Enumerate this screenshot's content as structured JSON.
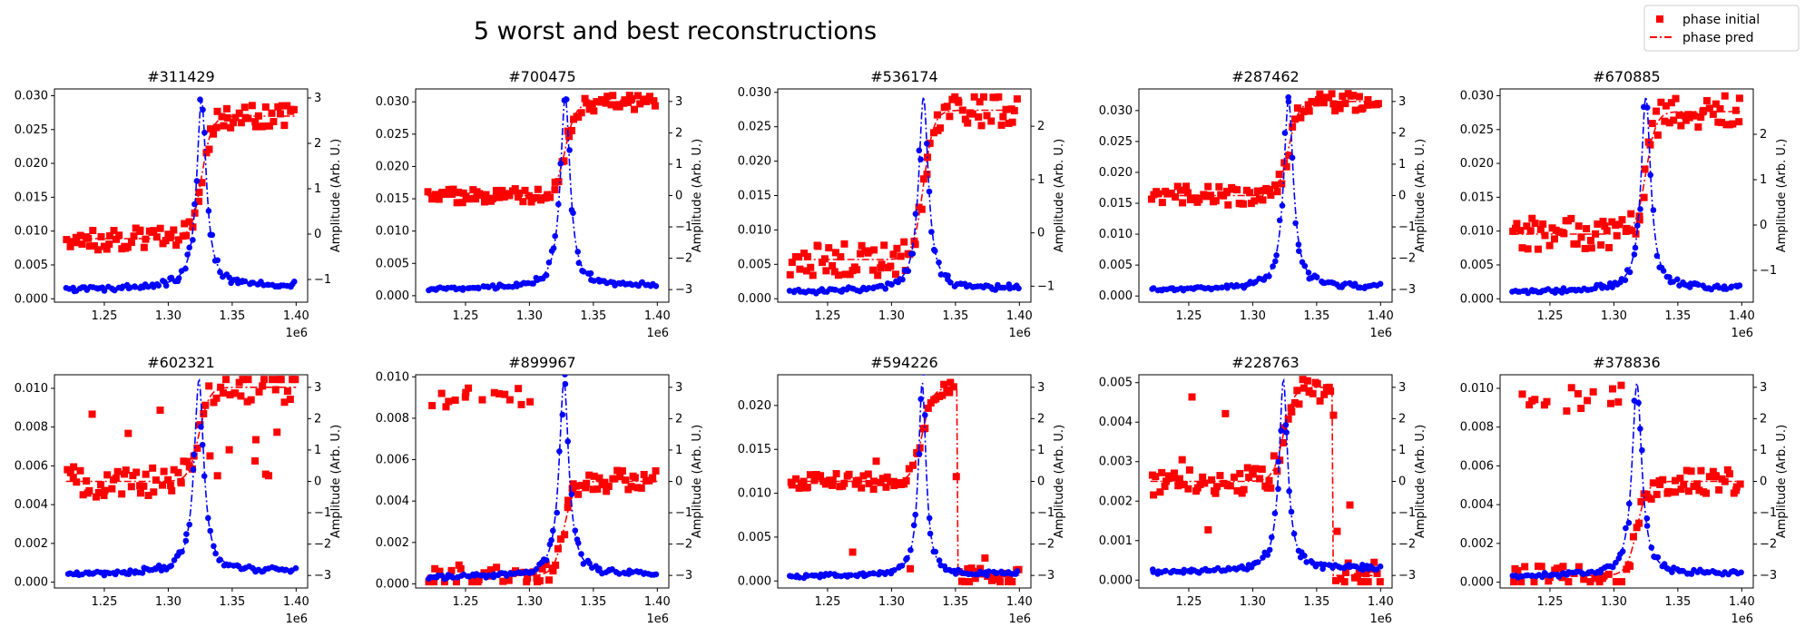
{
  "figure": {
    "title": "5 worst and best reconstructions",
    "legend": {
      "placement": "top-right",
      "entries": [
        {
          "label": "phase initial",
          "marker": "square",
          "color": "#ff0000"
        },
        {
          "label": "phase pred",
          "line": "dash-dot",
          "color": "#ff0000"
        }
      ]
    },
    "colors": {
      "amplitude": "#0000ff",
      "phase": "#ff0000"
    }
  },
  "chart_data": [
    {
      "type": "line",
      "title": "#311429",
      "x_range": [
        1220000,
        1400000
      ],
      "xticks": [
        1.25,
        1.3,
        1.35,
        1.4
      ],
      "x_offset_label": "1e6",
      "resonance": 1326000,
      "width": 0.009,
      "amp_min": 0.0013,
      "amp_peak": 0.029,
      "ylim": [
        -0.0005,
        0.031
      ],
      "yticks": [
        "0.000",
        "0.005",
        "0.010",
        "0.015",
        "0.020",
        "0.025",
        "0.030"
      ],
      "y2lim": [
        -1.5,
        3.2
      ],
      "y2ticks": [
        "−1",
        "0",
        "1",
        "2",
        "3"
      ],
      "y2label": "Amplitude (Arb. U.)",
      "phase_lo": -0.1,
      "phase_hi": 2.6,
      "phase_noise": 0.25,
      "mode": "good"
    },
    {
      "type": "line",
      "title": "#700475",
      "x_range": [
        1220000,
        1400000
      ],
      "xticks": [
        1.25,
        1.3,
        1.35,
        1.4
      ],
      "x_offset_label": "1e6",
      "resonance": 1328000,
      "width": 0.009,
      "amp_min": 0.001,
      "amp_peak": 0.0305,
      "ylim": [
        -0.001,
        0.032
      ],
      "yticks": [
        "0.000",
        "0.005",
        "0.010",
        "0.015",
        "0.020",
        "0.025",
        "0.030"
      ],
      "y2lim": [
        -3.4,
        3.4
      ],
      "y2ticks": [
        "−3",
        "−2",
        "−1",
        "0",
        "1",
        "2",
        "3"
      ],
      "y2label": "Amplitude (Arb. U.)",
      "phase_lo": 0.0,
      "phase_hi": 2.95,
      "phase_noise": 0.25,
      "mode": "good"
    },
    {
      "type": "line",
      "title": "#536174",
      "x_range": [
        1220000,
        1400000
      ],
      "xticks": [
        1.25,
        1.3,
        1.35,
        1.4
      ],
      "x_offset_label": "1e6",
      "resonance": 1325000,
      "width": 0.009,
      "amp_min": 0.001,
      "amp_peak": 0.029,
      "ylim": [
        -0.0005,
        0.0305
      ],
      "yticks": [
        "0.000",
        "0.005",
        "0.010",
        "0.015",
        "0.020",
        "0.025",
        "0.030"
      ],
      "y2lim": [
        -1.3,
        2.7
      ],
      "y2ticks": [
        "−1",
        "0",
        "1",
        "2"
      ],
      "y2label": "Amplitude (Arb. U.)",
      "phase_lo": -0.5,
      "phase_hi": 2.3,
      "phase_noise": 0.3,
      "mode": "good"
    },
    {
      "type": "line",
      "title": "#287462",
      "x_range": [
        1220000,
        1400000
      ],
      "xticks": [
        1.25,
        1.3,
        1.35,
        1.4
      ],
      "x_offset_label": "1e6",
      "resonance": 1328000,
      "width": 0.009,
      "amp_min": 0.001,
      "amp_peak": 0.0315,
      "ylim": [
        -0.001,
        0.0335
      ],
      "yticks": [
        "0.000",
        "0.005",
        "0.010",
        "0.015",
        "0.020",
        "0.025",
        "0.030"
      ],
      "y2lim": [
        -3.4,
        3.4
      ],
      "y2ticks": [
        "−3",
        "−2",
        "−1",
        "0",
        "1",
        "2",
        "3"
      ],
      "y2label": "Amplitude (Arb. U.)",
      "phase_lo": 0.0,
      "phase_hi": 3.0,
      "phase_noise": 0.3,
      "mode": "good"
    },
    {
      "type": "line",
      "title": "#670885",
      "x_range": [
        1220000,
        1400000
      ],
      "xticks": [
        1.25,
        1.3,
        1.35,
        1.4
      ],
      "x_offset_label": "1e6",
      "resonance": 1325000,
      "width": 0.009,
      "amp_min": 0.001,
      "amp_peak": 0.0295,
      "ylim": [
        -0.0005,
        0.031
      ],
      "yticks": [
        "0.000",
        "0.005",
        "0.010",
        "0.015",
        "0.020",
        "0.025",
        "0.030"
      ],
      "y2lim": [
        -1.7,
        3.0
      ],
      "y2ticks": [
        "−1",
        "0",
        "1",
        "2"
      ],
      "y2label": "Amplitude (Arb. U.)",
      "phase_lo": -0.2,
      "phase_hi": 2.5,
      "phase_noise": 0.35,
      "mode": "good"
    },
    {
      "type": "line",
      "title": "#602321",
      "x_range": [
        1220000,
        1400000
      ],
      "xticks": [
        1.25,
        1.3,
        1.35,
        1.4
      ],
      "x_offset_label": "1e6",
      "resonance": 1324000,
      "width": 0.009,
      "amp_min": 0.0004,
      "amp_peak": 0.0103,
      "ylim": [
        -0.0003,
        0.0107
      ],
      "yticks": [
        "0.000",
        "0.002",
        "0.004",
        "0.006",
        "0.008",
        "0.010"
      ],
      "y2lim": [
        -3.4,
        3.4
      ],
      "y2ticks": [
        "−3",
        "−2",
        "−1",
        "0",
        "1",
        "2",
        "3"
      ],
      "y2label": "Amplitude (Arb. U.)",
      "phase_lo": 0.0,
      "phase_hi": 3.0,
      "phase_noise": 0.5,
      "mode": "scatter"
    },
    {
      "type": "line",
      "title": "#899967",
      "x_range": [
        1220000,
        1400000
      ],
      "xticks": [
        1.25,
        1.3,
        1.35,
        1.4
      ],
      "x_offset_label": "1e6",
      "resonance": 1327000,
      "width": 0.009,
      "amp_min": 0.0003,
      "amp_peak": 0.0097,
      "ylim": [
        -0.0002,
        0.0101
      ],
      "yticks": [
        "0.000",
        "0.002",
        "0.004",
        "0.006",
        "0.008",
        "0.010"
      ],
      "y2lim": [
        -3.4,
        3.4
      ],
      "y2ticks": [
        "−3",
        "−2",
        "−1",
        "0",
        "1",
        "2",
        "3"
      ],
      "y2label": "Amplitude (Arb. U.)",
      "phase_lo": -3.0,
      "phase_hi": 0.0,
      "phase_noise": 0.35,
      "mode": "wrapped"
    },
    {
      "type": "line",
      "title": "#594226",
      "x_range": [
        1220000,
        1400000
      ],
      "xticks": [
        1.25,
        1.3,
        1.35,
        1.4
      ],
      "x_offset_label": "1e6",
      "resonance": 1324000,
      "width": 0.007,
      "amp_min": 0.0005,
      "amp_peak": 0.0225,
      "ylim": [
        -0.0008,
        0.0235
      ],
      "yticks": [
        "0.000",
        "0.005",
        "0.010",
        "0.015",
        "0.020"
      ],
      "y2lim": [
        -3.4,
        3.4
      ],
      "y2ticks": [
        "−3",
        "−2",
        "−1",
        "0",
        "1",
        "2",
        "3"
      ],
      "y2label": "Amplitude (Arb. U.)",
      "phase_lo": 0.0,
      "phase_hi": 3.0,
      "phase_noise": 0.25,
      "mode": "drop",
      "drop_at": 1351000
    },
    {
      "type": "line",
      "title": "#228763",
      "x_range": [
        1220000,
        1400000
      ],
      "xticks": [
        1.25,
        1.3,
        1.35,
        1.4
      ],
      "x_offset_label": "1e6",
      "resonance": 1324000,
      "width": 0.008,
      "amp_min": 0.0002,
      "amp_peak": 0.005,
      "ylim": [
        -0.0002,
        0.0052
      ],
      "yticks": [
        "0.000",
        "0.001",
        "0.002",
        "0.003",
        "0.004",
        "0.005"
      ],
      "y2lim": [
        -3.4,
        3.4
      ],
      "y2ticks": [
        "−3",
        "−2",
        "−1",
        "0",
        "1",
        "2",
        "3"
      ],
      "y2label": "Amplitude (Arb. U.)",
      "phase_lo": 0.0,
      "phase_hi": 3.0,
      "phase_noise": 0.45,
      "mode": "drop",
      "drop_at": 1362000
    },
    {
      "type": "line",
      "title": "#378836",
      "x_range": [
        1220000,
        1400000
      ],
      "xticks": [
        1.25,
        1.3,
        1.35,
        1.4
      ],
      "x_offset_label": "1e6",
      "resonance": 1318000,
      "width": 0.009,
      "amp_min": 0.0003,
      "amp_peak": 0.0102,
      "ylim": [
        -0.0003,
        0.0107
      ],
      "yticks": [
        "0.000",
        "0.002",
        "0.004",
        "0.006",
        "0.008",
        "0.010"
      ],
      "y2lim": [
        -3.4,
        3.4
      ],
      "y2ticks": [
        "−3",
        "−2",
        "−1",
        "0",
        "1",
        "2",
        "3"
      ],
      "y2label": "Amplitude (Arb. U.)",
      "phase_lo": -3.0,
      "phase_hi": 0.0,
      "phase_noise": 0.4,
      "mode": "wrapped"
    }
  ]
}
